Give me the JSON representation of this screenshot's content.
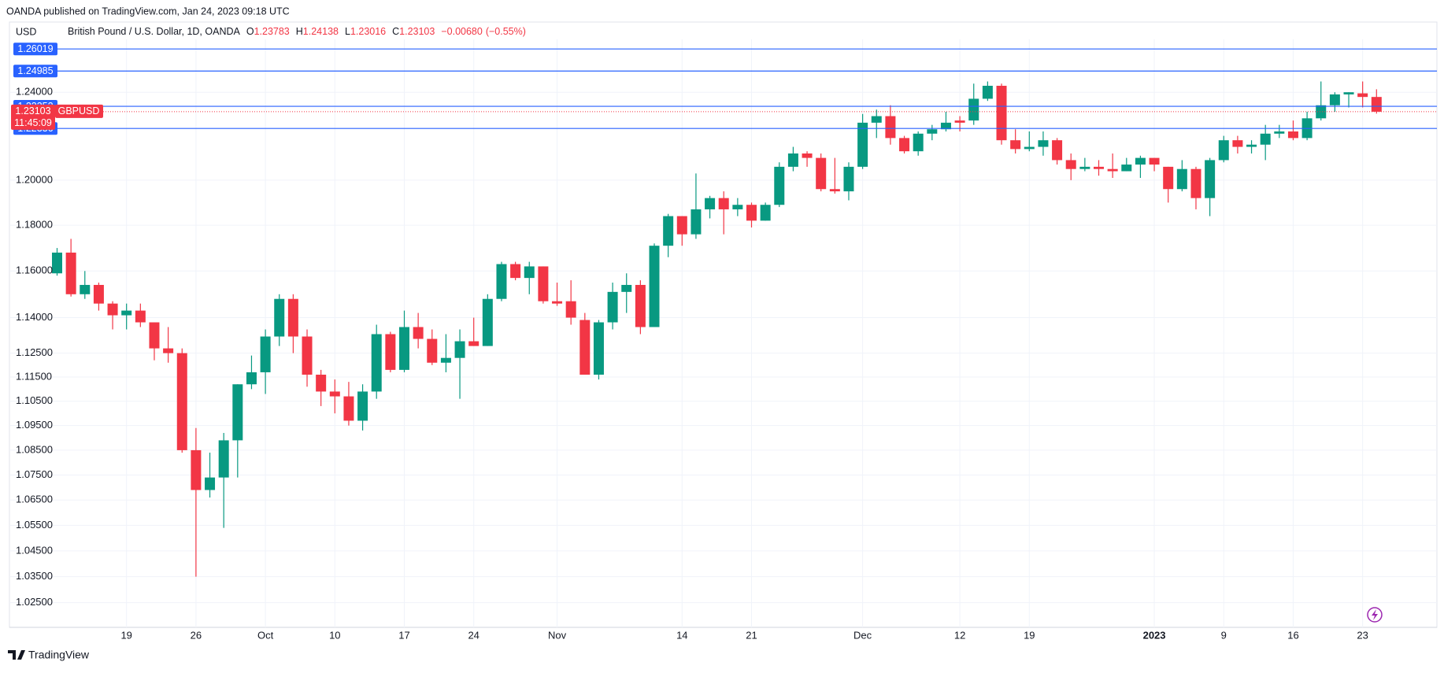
{
  "header": {
    "published": "OANDA published on TradingView.com, Jan 24, 2023 09:18 UTC"
  },
  "footer": {
    "brand": "TradingView"
  },
  "chart_data": {
    "type": "candlestick",
    "currency": "USD",
    "name": "British Pound / U.S. Dollar, 1D, OANDA",
    "ohlc_letters": [
      "O",
      "H",
      "L",
      "C"
    ],
    "change": "−0.00680",
    "change_pct": "(−0.55%)",
    "symbol": "GBPUSD",
    "countdown": "11:45:09",
    "up_color": "#089981",
    "down_color": "#f23645",
    "price_line_color": "#2962ff",
    "price_lines": [
      1.26019,
      1.24985,
      1.23352,
      1.22336
    ],
    "log_scale": true,
    "grid": true,
    "ylim": [
      1.0168,
      1.2636
    ],
    "yticks": [
      {
        "value": 1.025,
        "label": "1.02500"
      },
      {
        "value": 1.035,
        "label": "1.03500"
      },
      {
        "value": 1.045,
        "label": "1.04500"
      },
      {
        "value": 1.055,
        "label": "1.05500"
      },
      {
        "value": 1.065,
        "label": "1.06500"
      },
      {
        "value": 1.075,
        "label": "1.07500"
      },
      {
        "value": 1.085,
        "label": "1.08500"
      },
      {
        "value": 1.095,
        "label": "1.09500"
      },
      {
        "value": 1.105,
        "label": "1.10500"
      },
      {
        "value": 1.115,
        "label": "1.11500"
      },
      {
        "value": 1.125,
        "label": "1.12500"
      },
      {
        "value": 1.14,
        "label": "1.14000"
      },
      {
        "value": 1.16,
        "label": "1.16000"
      },
      {
        "value": 1.18,
        "label": "1.18000"
      },
      {
        "value": 1.2,
        "label": "1.20000"
      },
      {
        "value": 1.24,
        "label": "1.24000"
      }
    ],
    "categories": [
      null,
      null,
      null,
      null,
      null,
      "19",
      null,
      null,
      null,
      null,
      "26",
      null,
      null,
      null,
      null,
      "Oct",
      null,
      null,
      null,
      null,
      "10",
      null,
      null,
      null,
      null,
      "17",
      null,
      null,
      null,
      null,
      "24",
      null,
      null,
      null,
      null,
      null,
      "Nov",
      null,
      null,
      null,
      null,
      null,
      null,
      null,
      null,
      "14",
      null,
      null,
      null,
      null,
      "21",
      null,
      null,
      null,
      null,
      null,
      null,
      null,
      "Dec",
      null,
      null,
      null,
      null,
      null,
      null,
      "12",
      null,
      null,
      null,
      null,
      "19",
      null,
      null,
      null,
      null,
      null,
      null,
      null,
      null,
      "2023",
      null,
      null,
      null,
      null,
      "9",
      null,
      null,
      null,
      null,
      "16",
      null,
      null,
      null,
      null,
      "23",
      null
    ],
    "open": [
      1.159,
      1.168,
      1.15,
      1.154,
      1.146,
      1.141,
      1.143,
      1.138,
      1.127,
      1.125,
      1.085,
      1.069,
      1.074,
      1.089,
      1.112,
      1.117,
      1.132,
      1.148,
      1.132,
      1.116,
      1.109,
      1.107,
      1.097,
      1.109,
      1.133,
      1.118,
      1.136,
      1.131,
      1.121,
      1.123,
      1.13,
      1.128,
      1.148,
      1.163,
      1.157,
      1.162,
      1.147,
      1.147,
      1.139,
      1.116,
      1.138,
      1.151,
      1.154,
      1.136,
      1.171,
      1.184,
      1.176,
      1.187,
      1.192,
      1.187,
      1.189,
      1.182,
      1.189,
      1.206,
      1.212,
      1.21,
      1.196,
      1.195,
      1.206,
      1.226,
      1.229,
      1.219,
      1.213,
      1.221,
      1.223,
      1.227,
      1.227,
      1.237,
      1.243,
      1.218,
      1.214,
      1.215,
      1.218,
      1.209,
      1.205,
      1.206,
      1.205,
      1.204,
      1.207,
      1.21,
      1.206,
      1.196,
      1.205,
      1.192,
      1.209,
      1.218,
      1.215,
      1.216,
      1.221,
      1.222,
      1.219,
      1.228,
      1.234,
      1.239,
      1.2395,
      1.23783
    ],
    "high": [
      1.17,
      1.174,
      1.16,
      1.155,
      1.147,
      1.146,
      1.146,
      1.138,
      1.136,
      1.127,
      1.094,
      1.084,
      1.092,
      1.112,
      1.124,
      1.135,
      1.15,
      1.15,
      1.135,
      1.118,
      1.114,
      1.113,
      1.112,
      1.137,
      1.134,
      1.143,
      1.142,
      1.135,
      1.133,
      1.135,
      1.14,
      1.15,
      1.164,
      1.164,
      1.164,
      1.162,
      1.155,
      1.156,
      1.142,
      1.139,
      1.155,
      1.159,
      1.156,
      1.172,
      1.185,
      1.184,
      1.203,
      1.193,
      1.195,
      1.192,
      1.19,
      1.19,
      1.208,
      1.215,
      1.213,
      1.212,
      1.21,
      1.208,
      1.23,
      1.232,
      1.234,
      1.22,
      1.222,
      1.225,
      1.231,
      1.229,
      1.244,
      1.245,
      1.244,
      1.223,
      1.222,
      1.222,
      1.219,
      1.212,
      1.21,
      1.209,
      1.212,
      1.21,
      1.211,
      1.21,
      1.206,
      1.209,
      1.206,
      1.21,
      1.22,
      1.22,
      1.218,
      1.225,
      1.225,
      1.227,
      1.231,
      1.245,
      1.24,
      1.24,
      1.245,
      1.24138
    ],
    "low": [
      1.158,
      1.149,
      1.148,
      1.143,
      1.135,
      1.135,
      1.136,
      1.122,
      1.121,
      1.084,
      1.035,
      1.066,
      1.054,
      1.074,
      1.11,
      1.108,
      1.128,
      1.125,
      1.111,
      1.103,
      1.1,
      1.095,
      1.093,
      1.106,
      1.117,
      1.117,
      1.127,
      1.12,
      1.117,
      1.106,
      1.128,
      1.128,
      1.147,
      1.156,
      1.15,
      1.146,
      1.145,
      1.137,
      1.116,
      1.114,
      1.135,
      1.142,
      1.133,
      1.136,
      1.166,
      1.171,
      1.174,
      1.183,
      1.176,
      1.184,
      1.179,
      1.182,
      1.188,
      1.204,
      1.206,
      1.195,
      1.194,
      1.191,
      1.205,
      1.219,
      1.216,
      1.212,
      1.211,
      1.218,
      1.222,
      1.222,
      1.225,
      1.236,
      1.216,
      1.212,
      1.213,
      1.211,
      1.207,
      1.2,
      1.204,
      1.202,
      1.201,
      1.204,
      1.201,
      1.204,
      1.19,
      1.195,
      1.187,
      1.184,
      1.208,
      1.212,
      1.212,
      1.209,
      1.219,
      1.218,
      1.218,
      1.227,
      1.231,
      1.233,
      1.233,
      1.23016
    ],
    "close": [
      1.168,
      1.15,
      1.154,
      1.146,
      1.141,
      1.143,
      1.138,
      1.127,
      1.125,
      1.085,
      1.069,
      1.074,
      1.089,
      1.112,
      1.117,
      1.132,
      1.148,
      1.132,
      1.116,
      1.109,
      1.107,
      1.097,
      1.109,
      1.133,
      1.118,
      1.136,
      1.131,
      1.121,
      1.123,
      1.13,
      1.128,
      1.148,
      1.163,
      1.157,
      1.162,
      1.147,
      1.146,
      1.14,
      1.116,
      1.138,
      1.151,
      1.154,
      1.136,
      1.171,
      1.184,
      1.176,
      1.187,
      1.192,
      1.187,
      1.189,
      1.182,
      1.189,
      1.206,
      1.212,
      1.21,
      1.196,
      1.195,
      1.206,
      1.226,
      1.229,
      1.219,
      1.213,
      1.221,
      1.223,
      1.226,
      1.226,
      1.237,
      1.243,
      1.218,
      1.214,
      1.215,
      1.218,
      1.209,
      1.205,
      1.206,
      1.205,
      1.204,
      1.207,
      1.21,
      1.207,
      1.196,
      1.205,
      1.192,
      1.209,
      1.218,
      1.215,
      1.216,
      1.221,
      1.222,
      1.219,
      1.228,
      1.234,
      1.239,
      1.24,
      1.23783,
      1.23103
    ]
  }
}
